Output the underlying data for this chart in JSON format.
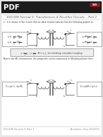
{
  "bg_color": "#e8e8e8",
  "page_color": "#ffffff",
  "header_bg": "#1c1c1c",
  "header_text": "PDF",
  "header_text_color": "#ffffff",
  "title_text": "EG1108 Tutorial 5: Transformers & Rectifier Circuits – Part 1",
  "title_color": "#444444",
  "body_line_color": "#333333",
  "footer_left": "EG1108 Tutorial 5: Part 1",
  "footer_right": "Academic Year 2022/23",
  "footer_fontsize": 2.5,
  "separator_color": "#aaaaaa",
  "diagram_color": "#444444",
  "box_edge": "#666666",
  "equation_color": "#333333",
  "figsize": [
    1.49,
    1.98
  ],
  "dpi": 100
}
